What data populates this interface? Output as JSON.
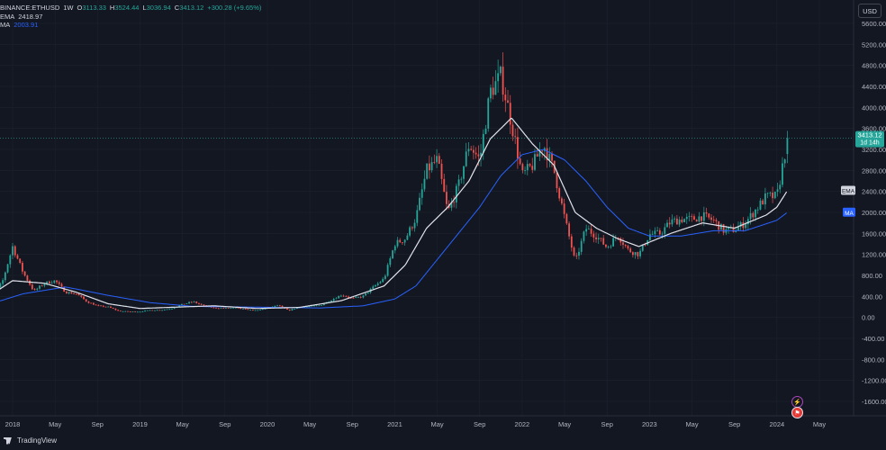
{
  "legend": {
    "symbol": "BINANCE:ETHUSD",
    "interval": "1W",
    "open_label": "O",
    "open": "3113.33",
    "high_label": "H",
    "high": "3524.44",
    "low_label": "L",
    "low": "3036.94",
    "close_label": "C",
    "close": "3413.12",
    "change": "+300.28 (+9.65%)",
    "ema_label": "EMA",
    "ema_value": "2418.97",
    "ma_label": "MA",
    "ma_value": "2003.91"
  },
  "currency_button": "USD",
  "branding": "TradingView",
  "colors": {
    "background": "#131722",
    "up": "#26a69a",
    "down": "#ef5350",
    "ema": "#e0e3eb",
    "ma": "#2962ff",
    "grid": "#1e222d",
    "axis_text": "#b2b5be"
  },
  "icons": [
    "lightning-icon",
    "flag-icon"
  ],
  "chart_data": {
    "type": "candlestick",
    "symbol": "BINANCE:ETHUSD",
    "interval": "1W",
    "ylim": [
      -1700,
      5700
    ],
    "y_ticks": [
      "5600.00",
      "5200.00",
      "4800.00",
      "4400.00",
      "4000.00",
      "3600.00",
      "3200.00",
      "2800.00",
      "2400.00",
      "2000.00",
      "1600.00",
      "1200.00",
      "800.00",
      "400.00",
      "0.00",
      "-400.00",
      "-800.00",
      "-1200.00",
      "-1600.00"
    ],
    "y_tick_values": [
      5600,
      5200,
      4800,
      4400,
      4000,
      3600,
      3200,
      2800,
      2400,
      2000,
      1600,
      1200,
      800,
      400,
      0,
      -400,
      -800,
      -1200,
      -1600
    ],
    "x_ticks": [
      "2018",
      "May",
      "Sep",
      "2019",
      "May",
      "Sep",
      "2020",
      "May",
      "Sep",
      "2021",
      "May",
      "Sep",
      "2022",
      "May",
      "Sep",
      "2023",
      "May",
      "Sep",
      "2024",
      "May"
    ],
    "x_tick_dates": [
      "2018-01",
      "2018-05",
      "2018-09",
      "2019-01",
      "2019-05",
      "2019-09",
      "2020-01",
      "2020-05",
      "2020-09",
      "2021-01",
      "2021-05",
      "2021-09",
      "2022-01",
      "2022-05",
      "2022-09",
      "2023-01",
      "2023-05",
      "2023-09",
      "2024-01",
      "2024-05"
    ],
    "price_path": [
      [
        "2017-10",
        300
      ],
      [
        "2017-11",
        420
      ],
      [
        "2017-12",
        650
      ],
      [
        "2018-01",
        1350
      ],
      [
        "2018-02",
        850
      ],
      [
        "2018-03",
        500
      ],
      [
        "2018-04",
        650
      ],
      [
        "2018-05",
        700
      ],
      [
        "2018-06",
        480
      ],
      [
        "2018-07",
        450
      ],
      [
        "2018-08",
        300
      ],
      [
        "2018-09",
        220
      ],
      [
        "2018-10",
        200
      ],
      [
        "2018-11",
        120
      ],
      [
        "2018-12",
        110
      ],
      [
        "2019-01",
        110
      ],
      [
        "2019-02",
        140
      ],
      [
        "2019-03",
        140
      ],
      [
        "2019-04",
        170
      ],
      [
        "2019-05",
        250
      ],
      [
        "2019-06",
        300
      ],
      [
        "2019-07",
        220
      ],
      [
        "2019-08",
        180
      ],
      [
        "2019-09",
        175
      ],
      [
        "2019-10",
        180
      ],
      [
        "2019-11",
        150
      ],
      [
        "2019-12",
        130
      ],
      [
        "2020-01",
        180
      ],
      [
        "2020-02",
        230
      ],
      [
        "2020-03",
        130
      ],
      [
        "2020-04",
        200
      ],
      [
        "2020-05",
        210
      ],
      [
        "2020-06",
        230
      ],
      [
        "2020-07",
        330
      ],
      [
        "2020-08",
        430
      ],
      [
        "2020-09",
        360
      ],
      [
        "2020-10",
        400
      ],
      [
        "2020-11",
        580
      ],
      [
        "2020-12",
        740
      ],
      [
        "2021-01",
        1400
      ],
      [
        "2021-02",
        1500
      ],
      [
        "2021-03",
        1900
      ],
      [
        "2021-04",
        2800
      ],
      [
        "2021-05",
        3000
      ],
      [
        "2021-06",
        2000
      ],
      [
        "2021-07",
        2500
      ],
      [
        "2021-08",
        3300
      ],
      [
        "2021-09",
        3000
      ],
      [
        "2021-10",
        4300
      ],
      [
        "2021-11",
        4600
      ],
      [
        "2021-12",
        3700
      ],
      [
        "2022-01",
        2700
      ],
      [
        "2022-02",
        2900
      ],
      [
        "2022-03",
        3300
      ],
      [
        "2022-04",
        2800
      ],
      [
        "2022-05",
        1900
      ],
      [
        "2022-06",
        1050
      ],
      [
        "2022-07",
        1700
      ],
      [
        "2022-08",
        1550
      ],
      [
        "2022-09",
        1330
      ],
      [
        "2022-10",
        1570
      ],
      [
        "2022-11",
        1280
      ],
      [
        "2022-12",
        1200
      ],
      [
        "2023-01",
        1580
      ],
      [
        "2023-02",
        1600
      ],
      [
        "2023-03",
        1820
      ],
      [
        "2023-04",
        1870
      ],
      [
        "2023-05",
        1870
      ],
      [
        "2023-06",
        1930
      ],
      [
        "2023-07",
        1850
      ],
      [
        "2023-08",
        1650
      ],
      [
        "2023-09",
        1670
      ],
      [
        "2023-10",
        1800
      ],
      [
        "2023-11",
        2050
      ],
      [
        "2023-12",
        2300
      ],
      [
        "2024-01",
        2300
      ],
      [
        "2024-02",
        3400
      ]
    ],
    "ema_path": [
      [
        "2017-10",
        300
      ],
      [
        "2018-01",
        700
      ],
      [
        "2018-04",
        650
      ],
      [
        "2018-07",
        480
      ],
      [
        "2018-10",
        260
      ],
      [
        "2019-01",
        170
      ],
      [
        "2019-05",
        200
      ],
      [
        "2019-08",
        220
      ],
      [
        "2019-12",
        170
      ],
      [
        "2020-04",
        190
      ],
      [
        "2020-08",
        320
      ],
      [
        "2020-12",
        600
      ],
      [
        "2021-02",
        1000
      ],
      [
        "2021-04",
        1700
      ],
      [
        "2021-06",
        2100
      ],
      [
        "2021-08",
        2600
      ],
      [
        "2021-10",
        3400
      ],
      [
        "2021-12",
        3800
      ],
      [
        "2022-02",
        3300
      ],
      [
        "2022-04",
        2900
      ],
      [
        "2022-06",
        2000
      ],
      [
        "2022-08",
        1700
      ],
      [
        "2022-10",
        1500
      ],
      [
        "2022-12",
        1350
      ],
      [
        "2023-03",
        1600
      ],
      [
        "2023-06",
        1800
      ],
      [
        "2023-09",
        1700
      ],
      [
        "2023-12",
        1950
      ],
      [
        "2024-01",
        2100
      ],
      [
        "2024-02",
        2419
      ]
    ],
    "ma_path": [
      [
        "2017-10",
        200
      ],
      [
        "2018-02",
        450
      ],
      [
        "2018-06",
        580
      ],
      [
        "2018-10",
        420
      ],
      [
        "2019-02",
        280
      ],
      [
        "2019-06",
        210
      ],
      [
        "2019-10",
        200
      ],
      [
        "2020-02",
        190
      ],
      [
        "2020-06",
        180
      ],
      [
        "2020-10",
        220
      ],
      [
        "2021-01",
        350
      ],
      [
        "2021-03",
        600
      ],
      [
        "2021-05",
        1100
      ],
      [
        "2021-07",
        1600
      ],
      [
        "2021-09",
        2100
      ],
      [
        "2021-11",
        2700
      ],
      [
        "2022-01",
        3100
      ],
      [
        "2022-03",
        3200
      ],
      [
        "2022-05",
        3000
      ],
      [
        "2022-07",
        2600
      ],
      [
        "2022-09",
        2100
      ],
      [
        "2022-11",
        1700
      ],
      [
        "2023-01",
        1550
      ],
      [
        "2023-04",
        1550
      ],
      [
        "2023-07",
        1650
      ],
      [
        "2023-10",
        1650
      ],
      [
        "2024-01",
        1850
      ],
      [
        "2024-02",
        2004
      ]
    ],
    "last_price_label": "3413.12",
    "last_price_countdown": "1d 14h",
    "last_price": 3413.12,
    "ema_tag": "EMA",
    "ma_tag": "MA",
    "ema_last": 2418.97,
    "ma_last": 2003.91
  }
}
